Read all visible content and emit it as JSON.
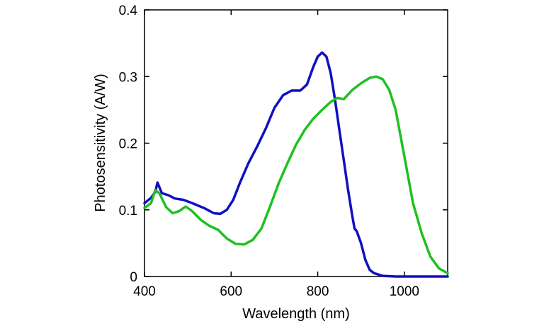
{
  "chart_data": {
    "type": "line",
    "xlabel": "Wavelength (nm)",
    "ylabel": "Photosensitivity (A/W)",
    "xlim": [
      400,
      1100
    ],
    "ylim": [
      0,
      0.4
    ],
    "x_ticks": [
      400,
      600,
      800,
      1000
    ],
    "x_tick_labels": [
      "400",
      "600",
      "800",
      "1000"
    ],
    "y_ticks": [
      0,
      0.1,
      0.2,
      0.3,
      0.4
    ],
    "y_tick_labels": [
      "0",
      "0.1",
      "0.2",
      "0.3",
      "0.4"
    ],
    "grid": false,
    "legend": "none",
    "series": [
      {
        "color": "#1010c0",
        "x": [
          400,
          415,
          425,
          430,
          440,
          455,
          470,
          490,
          510,
          540,
          560,
          575,
          590,
          605,
          620,
          640,
          660,
          680,
          700,
          720,
          740,
          760,
          775,
          790,
          800,
          810,
          820,
          830,
          840,
          850,
          860,
          870,
          880,
          885,
          890,
          900,
          910,
          920,
          930,
          950,
          980,
          1000,
          1050,
          1100
        ],
        "y": [
          0.11,
          0.118,
          0.127,
          0.141,
          0.125,
          0.122,
          0.117,
          0.115,
          0.11,
          0.102,
          0.095,
          0.094,
          0.1,
          0.115,
          0.14,
          0.17,
          0.195,
          0.222,
          0.253,
          0.272,
          0.279,
          0.279,
          0.288,
          0.315,
          0.33,
          0.336,
          0.33,
          0.305,
          0.265,
          0.22,
          0.175,
          0.13,
          0.09,
          0.072,
          0.068,
          0.05,
          0.025,
          0.01,
          0.005,
          0.001,
          0,
          0,
          0,
          0
        ]
      },
      {
        "color": "#20c020",
        "x": [
          400,
          415,
          425,
          435,
          450,
          465,
          480,
          495,
          510,
          530,
          550,
          570,
          590,
          610,
          630,
          650,
          670,
          690,
          710,
          730,
          750,
          770,
          790,
          810,
          830,
          845,
          860,
          880,
          900,
          920,
          935,
          950,
          965,
          980,
          1000,
          1020,
          1040,
          1060,
          1080,
          1100
        ],
        "y": [
          0.103,
          0.11,
          0.13,
          0.124,
          0.104,
          0.095,
          0.098,
          0.105,
          0.098,
          0.085,
          0.076,
          0.07,
          0.057,
          0.049,
          0.048,
          0.055,
          0.072,
          0.105,
          0.14,
          0.17,
          0.198,
          0.22,
          0.237,
          0.25,
          0.262,
          0.268,
          0.266,
          0.28,
          0.29,
          0.298,
          0.3,
          0.296,
          0.28,
          0.25,
          0.18,
          0.11,
          0.065,
          0.03,
          0.012,
          0.005
        ]
      }
    ]
  }
}
